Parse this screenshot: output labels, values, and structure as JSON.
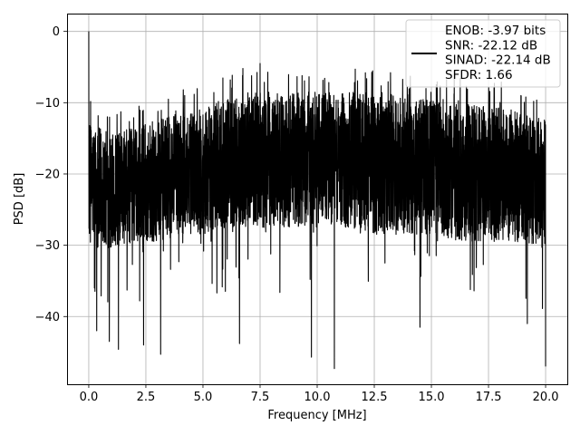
{
  "chart_data": {
    "type": "line",
    "title": "",
    "xlabel": "Frequency [MHz]",
    "ylabel": "PSD [dB]",
    "xlim": [
      -0.95,
      20.95
    ],
    "ylim": [
      -49.5,
      2.5
    ],
    "xticks": [
      0.0,
      2.5,
      5.0,
      7.5,
      10.0,
      12.5,
      15.0,
      17.5,
      20.0
    ],
    "xtick_labels": [
      "0.0",
      "2.5",
      "5.0",
      "7.5",
      "10.0",
      "12.5",
      "15.0",
      "17.5",
      "20.0"
    ],
    "yticks": [
      0,
      -10,
      -20,
      -30,
      -40
    ],
    "ytick_labels": [
      "0",
      "−10",
      "−20",
      "−30",
      "−40"
    ],
    "grid": true,
    "legend_position": "top-right",
    "legend_entries": [
      "ENOB: -3.97 bits",
      "SNR: -22.12 dB",
      "SINAD: -22.14 dB",
      "SFDR: 1.66"
    ],
    "series": [
      {
        "color": "#000000",
        "description": "dense noisy power spectral density, 0 to 20 MHz",
        "envelope_x": [
          0,
          0.5,
          1.0,
          2.0,
          3.0,
          4.0,
          5.0,
          6.0,
          7.0,
          8.0,
          9.0,
          10.0,
          11.0,
          12.0,
          13.0,
          14.0,
          15.0,
          16.0,
          17.0,
          18.0,
          19.0,
          20.0
        ],
        "typical_upper_db": [
          -12,
          -13,
          -14,
          -13,
          -12,
          -11,
          -10,
          -9,
          -8,
          -8,
          -8,
          -8,
          -8,
          -8,
          -8,
          -9,
          -9,
          -9,
          -10,
          -10,
          -11,
          -12
        ],
        "typical_lower_db": [
          -30,
          -31,
          -31,
          -30,
          -30,
          -29,
          -29,
          -28,
          -28,
          -28,
          -28,
          -28,
          -28,
          -29,
          -29,
          -29,
          -29,
          -30,
          -30,
          -30,
          -30,
          -31
        ],
        "peaks": [
          {
            "x": 0.0,
            "y": 0.0
          },
          {
            "x": 6.75,
            "y": -5.2
          },
          {
            "x": 7.5,
            "y": -4.5
          },
          {
            "x": 16.0,
            "y": -5.5
          }
        ],
        "dips": [
          {
            "x": 0.25,
            "y": -36
          },
          {
            "x": 0.35,
            "y": -42
          },
          {
            "x": 0.9,
            "y": -43.5
          },
          {
            "x": 1.3,
            "y": -44.6
          },
          {
            "x": 2.4,
            "y": -44
          },
          {
            "x": 3.15,
            "y": -45.3
          },
          {
            "x": 6.6,
            "y": -43.8
          },
          {
            "x": 9.75,
            "y": -45.7
          },
          {
            "x": 10.75,
            "y": -47.3
          },
          {
            "x": 14.5,
            "y": -41.5
          },
          {
            "x": 19.2,
            "y": -41
          },
          {
            "x": 20.0,
            "y": -47
          }
        ]
      }
    ]
  }
}
